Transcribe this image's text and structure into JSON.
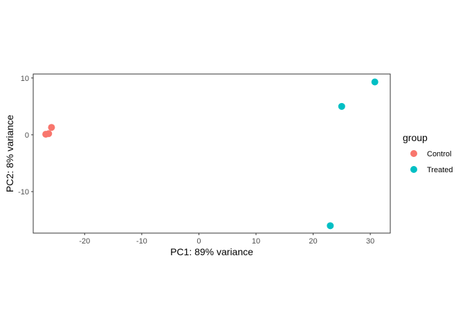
{
  "chart_data": {
    "type": "scatter",
    "xlabel": "PC1: 89% variance",
    "ylabel": "PC2: 8% variance",
    "xlim": [
      -29.0,
      33.5
    ],
    "ylim": [
      -17.3,
      10.7
    ],
    "x_ticks": [
      -20,
      -10,
      0,
      10,
      20,
      30
    ],
    "x_tick_labels": [
      "-20",
      "-10",
      "0",
      "10",
      "20",
      "30"
    ],
    "y_ticks": [
      -10,
      0,
      10
    ],
    "y_tick_labels": [
      "-10",
      "0",
      "10"
    ],
    "grid": false,
    "legend_placement": "right",
    "legend_title": "group",
    "series": [
      {
        "name": "Control",
        "color": "#F8766D",
        "x": [
          -26.8,
          -26.3,
          -25.8
        ],
        "y": [
          0.1,
          0.2,
          1.3
        ]
      },
      {
        "name": "Treated",
        "color": "#00BFC4",
        "x": [
          30.8,
          25.0,
          23.0
        ],
        "y": [
          9.3,
          5.0,
          -16.0
        ]
      }
    ]
  }
}
